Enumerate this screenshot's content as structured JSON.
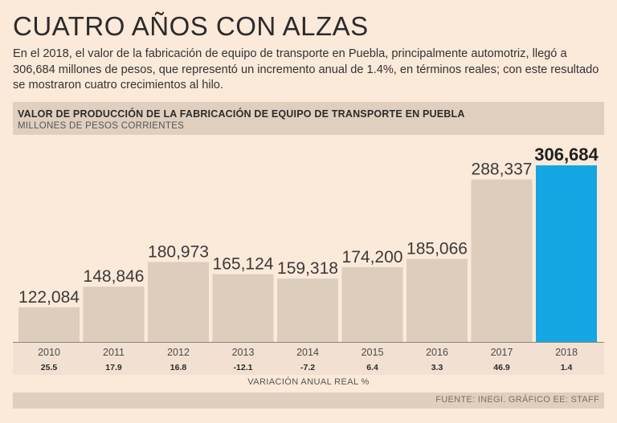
{
  "headline": "CUATRO AÑOS CON ALZAS",
  "intro": "En el 2018, el valor de la fabricación de equipo de transporte en Puebla, principalmente automotriz, llegó a 306,684 millones de pesos, que representó un incremento anual de 1.4%, en términos reales; con este resultado se mostraron cuatro crecimientos al hilo.",
  "source": "FUENTE: INEGI. GRÁFICO EE: STAFF",
  "colors": {
    "bar": "#ddcdbd",
    "highlight": "#14a7e3",
    "background": "#fbe9da"
  },
  "chart_data": {
    "type": "bar",
    "title": "VALOR DE PRODUCCIÓN DE LA FABRICACIÓN DE EQUIPO DE TRANSPORTE EN PUEBLA",
    "subtitle": "MILLONES DE PESOS CORRIENTES",
    "categories": [
      "2010",
      "2011",
      "2012",
      "2013",
      "2014",
      "2015",
      "2016",
      "2017",
      "2018"
    ],
    "values": [
      122084,
      148846,
      180973,
      165124,
      159318,
      174200,
      185066,
      288337,
      306684
    ],
    "value_labels": [
      "122,084",
      "148,846",
      "180,973",
      "165,124",
      "159,318",
      "174,200",
      "185,066",
      "288,337",
      "306,684"
    ],
    "variation_label": "VARIACIÓN ANUAL REAL %",
    "variation": [
      "25.5",
      "17.9",
      "16.8",
      "-12.1",
      "-7.2",
      "6.4",
      "3.3",
      "46.9",
      "1.4"
    ],
    "highlight_index": 8,
    "ylim": [
      100000,
      306684
    ],
    "grid": false,
    "legend": "none"
  }
}
